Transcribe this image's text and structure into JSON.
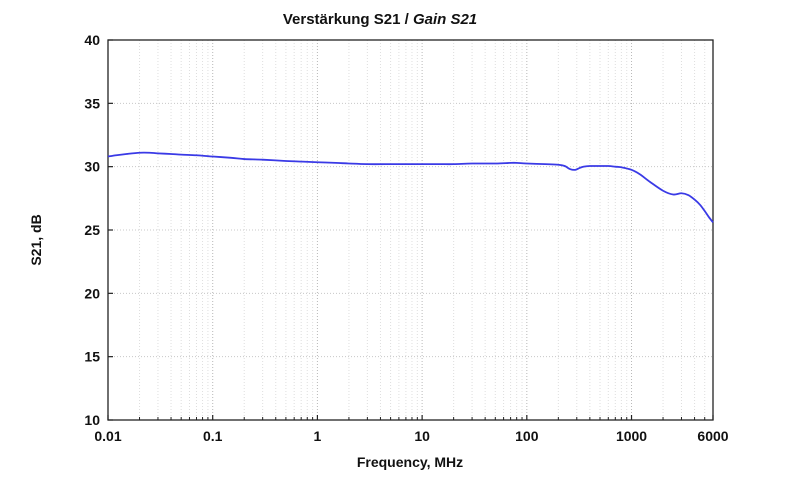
{
  "chart_data": {
    "type": "line",
    "title": "Verstärkung S21",
    "title_italic": "Gain S21",
    "title_separator": " / ",
    "xlabel": "Frequency, MHz",
    "ylabel": "S21, dB",
    "x_scale": "log",
    "xlim": [
      0.01,
      6000
    ],
    "ylim": [
      10,
      40
    ],
    "x_ticks": [
      0.01,
      0.1,
      1,
      10,
      100,
      1000,
      6000
    ],
    "x_tick_labels": [
      "0.01",
      "0.1",
      "1",
      "10",
      "100",
      "1000",
      "6000"
    ],
    "y_ticks": [
      10,
      15,
      20,
      25,
      30,
      35,
      40
    ],
    "y_tick_labels": [
      "10",
      "15",
      "20",
      "25",
      "30",
      "35",
      "40"
    ],
    "grid": true,
    "series_color": "#3a3ae6",
    "series": [
      {
        "x": [
          0.01,
          0.012,
          0.015,
          0.02,
          0.025,
          0.03,
          0.04,
          0.05,
          0.07,
          0.1,
          0.15,
          0.2,
          0.3,
          0.5,
          0.7,
          1,
          1.5,
          2,
          3,
          5,
          7,
          10,
          15,
          20,
          30,
          50,
          70,
          80,
          100,
          150,
          200,
          230,
          260,
          290,
          320,
          350,
          400,
          500,
          600,
          700,
          800,
          1000,
          1200,
          1500,
          2000,
          2500,
          3000,
          3500,
          4000,
          4500,
          5000,
          5500,
          6000
        ],
        "y": [
          30.8,
          30.9,
          31.0,
          31.1,
          31.1,
          31.05,
          31.0,
          30.95,
          30.9,
          30.8,
          30.7,
          30.6,
          30.55,
          30.45,
          30.4,
          30.35,
          30.3,
          30.25,
          30.2,
          30.2,
          30.2,
          30.2,
          30.2,
          30.2,
          30.25,
          30.25,
          30.3,
          30.3,
          30.25,
          30.2,
          30.15,
          30.05,
          29.8,
          29.75,
          29.9,
          30.0,
          30.05,
          30.05,
          30.05,
          30.0,
          29.95,
          29.75,
          29.4,
          28.8,
          28.1,
          27.8,
          27.9,
          27.75,
          27.4,
          27.0,
          26.5,
          26.0,
          25.6
        ]
      }
    ]
  }
}
